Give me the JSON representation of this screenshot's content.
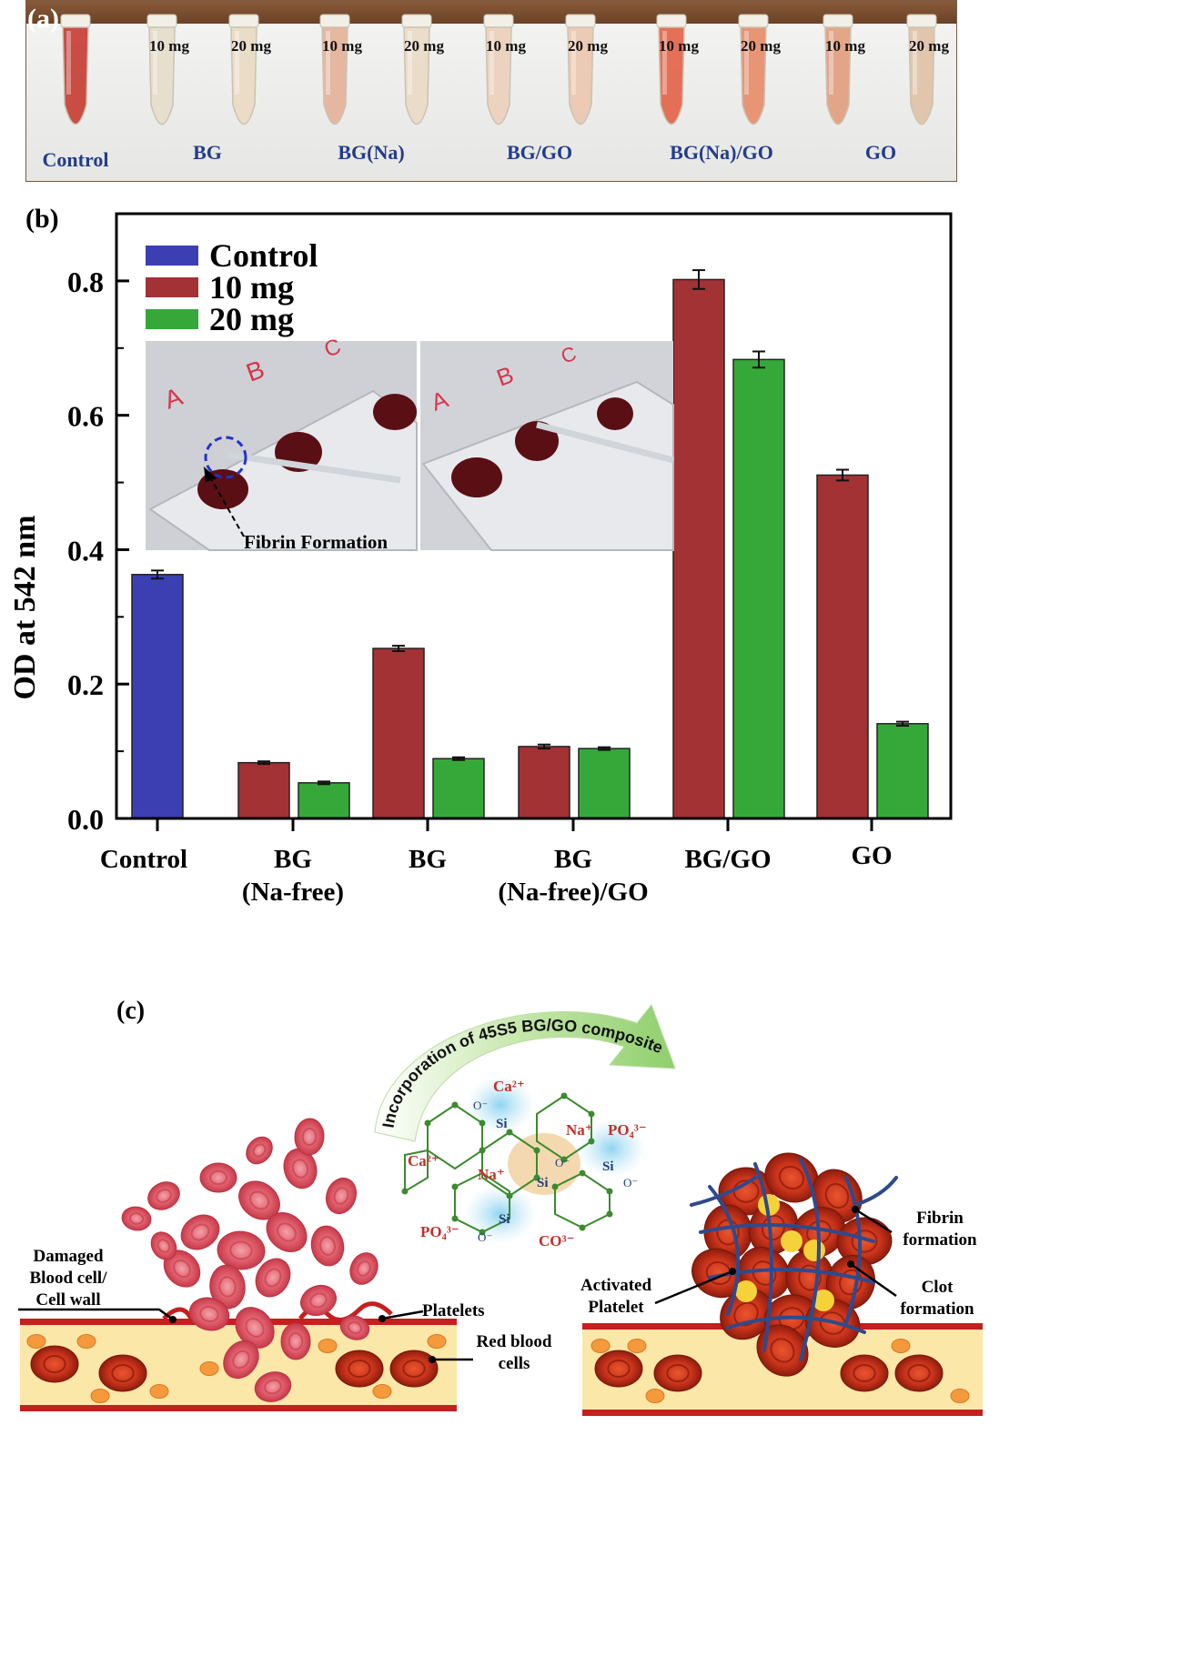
{
  "panel_a": {
    "label": "(a)",
    "groups": [
      {
        "name": "Control",
        "tubes": [
          {
            "label": "",
            "color": "#c9453c"
          }
        ]
      },
      {
        "name": "BG",
        "tubes": [
          {
            "label": "10 mg",
            "color": "#e6dfcc"
          },
          {
            "label": "20 mg",
            "color": "#eadcc6"
          }
        ]
      },
      {
        "name": "BG(Na)",
        "tubes": [
          {
            "label": "10 mg",
            "color": "#e6b59c"
          },
          {
            "label": "20 mg",
            "color": "#eadcc8"
          }
        ]
      },
      {
        "name": "BG/GO",
        "tubes": [
          {
            "label": "10 mg",
            "color": "#ecd2be"
          },
          {
            "label": "20 mg",
            "color": "#ecc9b3"
          }
        ]
      },
      {
        "name": "BG(Na)/GO",
        "tubes": [
          {
            "label": "10 mg",
            "color": "#e36a4f"
          },
          {
            "label": "20 mg",
            "color": "#e7916f"
          }
        ]
      },
      {
        "name": "GO",
        "tubes": [
          {
            "label": "10 mg",
            "color": "#e3a283"
          },
          {
            "label": "20 mg",
            "color": "#e2c3aa"
          }
        ]
      }
    ]
  },
  "panel_b": {
    "label": "(b)",
    "inset_annotation": "Fibrin Formation",
    "inset_slide_letters": [
      "A",
      "B",
      "C"
    ]
  },
  "chart_data": {
    "type": "bar",
    "title": "",
    "xlabel": "",
    "ylabel": "OD at 542 nm",
    "ylim": [
      0,
      0.9
    ],
    "yticks": [
      "0.0",
      "0.2",
      "0.4",
      "0.6",
      "0.8"
    ],
    "categories": [
      "Control",
      "BG (Na-free)",
      "BG",
      "BG (Na-free)/GO",
      "BG/GO",
      "GO"
    ],
    "category_lines": [
      [
        "Control"
      ],
      [
        "BG",
        "(Na-free)"
      ],
      [
        "BG"
      ],
      [
        "BG",
        "(Na-free)/GO"
      ],
      [
        "BG/GO"
      ],
      [
        "GO"
      ]
    ],
    "series": [
      {
        "name": "Control",
        "color": "#3b3fb2",
        "values": [
          0.363,
          null,
          null,
          null,
          null,
          null
        ],
        "errors": [
          0.006,
          null,
          null,
          null,
          null,
          null
        ]
      },
      {
        "name": "10 mg",
        "color": "#a23234",
        "values": [
          null,
          0.083,
          0.253,
          0.107,
          0.802,
          0.511
        ],
        "errors": [
          null,
          0.002,
          0.004,
          0.003,
          0.014,
          0.008
        ]
      },
      {
        "name": "20 mg",
        "color": "#36a83a",
        "values": [
          null,
          0.053,
          0.089,
          0.104,
          0.683,
          0.141
        ],
        "errors": [
          null,
          0.002,
          0.002,
          0.002,
          0.012,
          0.003
        ]
      }
    ],
    "legend": "top-left",
    "grid": false
  },
  "panel_c": {
    "label": "(c)",
    "arrow_text": "Incorporation of 45S5 BG/GO composite",
    "labels": {
      "damaged": [
        "Damaged",
        "Blood cell/",
        "Cell wall"
      ],
      "platelets": "Platelets",
      "rbc": [
        "Red blood",
        "cells"
      ],
      "activated": [
        "Activated",
        "Platelet"
      ],
      "fibrin": [
        "Fibrin",
        "formation"
      ],
      "clot": [
        "Clot",
        "formation"
      ]
    },
    "network_labels": [
      "Ca²⁺",
      "Na⁺",
      "PO₄³⁻",
      "Ca²⁺",
      "Na⁺",
      "PO₄³⁻",
      "CO³⁻",
      "Si",
      "Si",
      "Si",
      "Si",
      "O⁻",
      "O⁻",
      "O⁻",
      "O⁻"
    ]
  }
}
